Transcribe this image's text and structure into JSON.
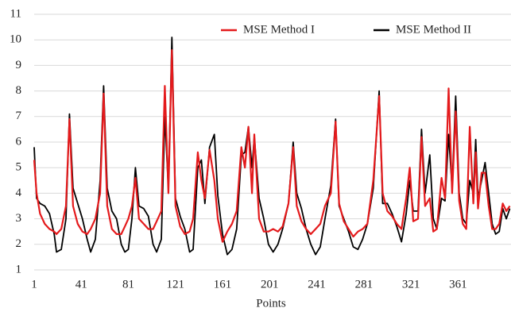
{
  "chart_data": {
    "type": "line",
    "x_label": "Points",
    "xlim": [
      1,
      406
    ],
    "xticks": [
      1,
      41,
      81,
      121,
      161,
      201,
      241,
      281,
      321,
      361
    ],
    "ylim": [
      1,
      11
    ],
    "yticks": [
      1,
      2,
      3,
      4,
      5,
      6,
      7,
      8,
      9,
      10,
      11
    ],
    "grid": true,
    "legend": "top-right",
    "x": [
      1,
      3,
      6,
      10,
      14,
      18,
      20,
      24,
      28,
      31,
      34,
      38,
      42,
      46,
      49,
      53,
      57,
      60,
      63,
      67,
      71,
      75,
      78,
      81,
      84,
      87,
      90,
      94,
      98,
      102,
      105,
      109,
      112,
      115,
      118,
      121,
      125,
      129,
      133,
      136,
      140,
      143,
      146,
      150,
      154,
      157,
      161,
      165,
      169,
      173,
      177,
      180,
      183,
      186,
      188,
      192,
      196,
      200,
      204,
      208,
      212,
      217,
      221,
      224,
      228,
      232,
      236,
      240,
      244,
      248,
      253,
      257,
      260,
      264,
      268,
      272,
      276,
      280,
      284,
      289,
      294,
      297,
      301,
      305,
      309,
      313,
      317,
      320,
      323,
      327,
      330,
      333,
      337,
      340,
      343,
      347,
      350,
      353,
      356,
      359,
      362,
      365,
      368,
      371,
      374,
      376,
      378,
      381,
      384,
      387,
      390,
      393,
      396,
      399,
      402,
      405
    ],
    "series": [
      {
        "name": "MSE Method I",
        "color": "#e41a1c",
        "values": [
          5.3,
          4.0,
          3.2,
          2.8,
          2.6,
          2.5,
          2.4,
          2.6,
          3.5,
          6.9,
          3.5,
          2.8,
          2.5,
          2.4,
          2.6,
          3.0,
          4.0,
          7.9,
          3.5,
          2.6,
          2.4,
          2.4,
          2.7,
          3.0,
          3.5,
          4.6,
          3.0,
          2.8,
          2.6,
          2.6,
          2.9,
          3.3,
          8.2,
          4.0,
          9.6,
          3.5,
          2.7,
          2.4,
          2.5,
          3.0,
          5.6,
          4.5,
          3.8,
          5.7,
          4.5,
          3.0,
          2.1,
          2.5,
          2.8,
          3.3,
          5.8,
          5.0,
          6.6,
          4.0,
          6.3,
          3.0,
          2.5,
          2.5,
          2.6,
          2.5,
          2.7,
          3.6,
          5.8,
          3.5,
          2.9,
          2.6,
          2.4,
          2.6,
          2.8,
          3.5,
          4.0,
          6.8,
          3.6,
          2.9,
          2.6,
          2.3,
          2.5,
          2.6,
          2.8,
          4.5,
          7.8,
          4.0,
          3.3,
          3.1,
          2.8,
          2.6,
          3.8,
          5.0,
          2.9,
          3.0,
          6.2,
          3.5,
          3.8,
          2.5,
          2.6,
          4.6,
          3.8,
          8.1,
          4.0,
          7.2,
          3.7,
          2.8,
          2.6,
          6.6,
          3.6,
          5.6,
          3.4,
          4.8,
          4.8,
          3.5,
          2.6,
          2.6,
          2.8,
          3.6,
          3.3,
          3.5
        ]
      },
      {
        "name": "MSE Method II",
        "color": "#000000",
        "values": [
          5.8,
          3.8,
          3.6,
          3.5,
          3.2,
          2.4,
          1.7,
          1.8,
          3.0,
          7.1,
          4.2,
          3.6,
          3.0,
          2.2,
          1.7,
          2.2,
          4.5,
          8.2,
          4.2,
          3.3,
          3.0,
          2.0,
          1.7,
          1.8,
          3.0,
          5.0,
          3.5,
          3.4,
          3.1,
          2.0,
          1.7,
          2.2,
          7.0,
          4.2,
          10.1,
          3.8,
          3.1,
          2.6,
          1.7,
          1.8,
          5.0,
          5.3,
          3.6,
          5.8,
          6.3,
          3.9,
          2.4,
          1.6,
          1.8,
          2.6,
          5.5,
          5.6,
          6.6,
          5.0,
          6.2,
          3.8,
          3.0,
          2.0,
          1.7,
          2.0,
          2.6,
          3.6,
          6.0,
          4.0,
          3.4,
          2.6,
          2.0,
          1.6,
          1.9,
          3.0,
          4.3,
          6.9,
          3.5,
          3.0,
          2.5,
          1.9,
          1.8,
          2.2,
          2.8,
          4.2,
          8.0,
          3.6,
          3.6,
          3.2,
          2.7,
          2.1,
          3.2,
          4.5,
          3.3,
          3.3,
          6.5,
          4.0,
          5.5,
          3.0,
          2.6,
          3.8,
          3.7,
          6.3,
          4.2,
          7.8,
          4.0,
          3.0,
          2.8,
          4.5,
          4.0,
          6.1,
          3.8,
          4.5,
          5.2,
          4.0,
          2.8,
          2.4,
          2.5,
          3.4,
          3.0,
          3.4
        ]
      }
    ]
  }
}
